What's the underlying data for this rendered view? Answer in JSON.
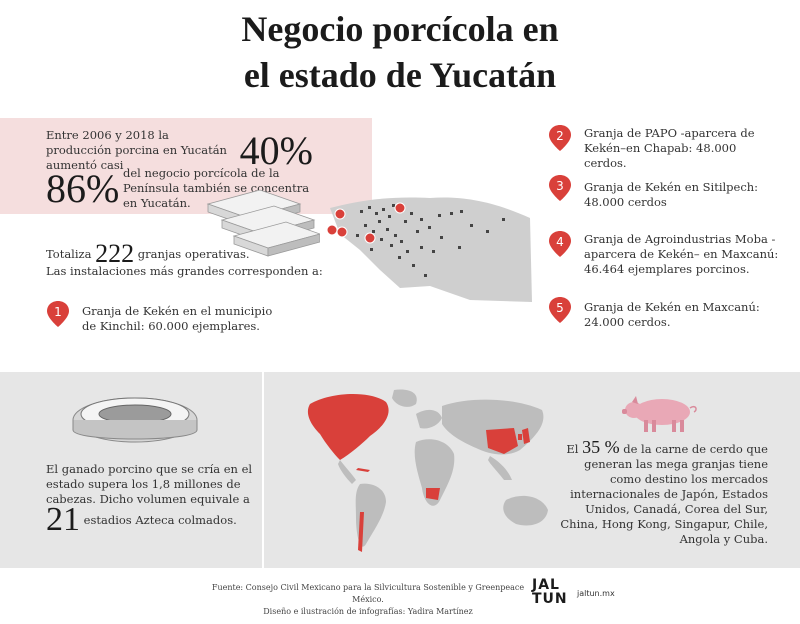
{
  "title": {
    "line1": "Negocio porcícola en",
    "line2": "el estado de Yucatán"
  },
  "stats": {
    "growth_text": "Entre 2006 y 2018 la producción porcina en Yucatán aumentó casi",
    "growth_value": "40%",
    "share_value": "86%",
    "share_text": "del negocio porcícola de la Península también se concentra en Yucatán.",
    "farms_prefix": "Totaliza",
    "farms_value": "222",
    "farms_suffix": "granjas operativas.",
    "farms_note": "Las instalaciones más grandes corresponden a:"
  },
  "farms": [
    {
      "num": "1",
      "text": "Granja de Kekén en el municipio de Kinchil: 60.000 ejemplares."
    },
    {
      "num": "2",
      "text": "Granja de PAPO -aparcera de Kekén–en Chapab: 48.000 cerdos."
    },
    {
      "num": "3",
      "text": "Granja de Kekén en Sitilpech: 48.000 cerdos"
    },
    {
      "num": "4",
      "text": "Granja de Agroindustrias Moba -aparcera de Kekén– en Maxcanú: 46.464 ejemplares porcinos."
    },
    {
      "num": "5",
      "text": "Granja de Kekén en Maxcanú: 24.000 cerdos."
    }
  ],
  "stadium": {
    "text": "El ganado porcino que se cría en el estado supera los 1,8 millones de cabezas. Dicho volumen equivale a",
    "value": "21",
    "suffix": "estadios Azteca colmados."
  },
  "export": {
    "prefix": "El",
    "value": "35 %",
    "text": "de la carne de cerdo que generan las mega granjas tiene como destino los mercados internacionales de Japón, Estados Unidos, Canadá, Corea del Sur, China, Hong Kong, Singapur, Chile, Angola y Cuba."
  },
  "footer": {
    "source": "Fuente: Consejo Civil Mexicano para la Silvicultura Sostenible y Greenpeace México.",
    "credit": "Diseño e ilustración de infografías: Yadira Martínez",
    "logo_top": "JAL",
    "logo_bottom": "TUN",
    "site": "jaltun.mx"
  },
  "colors": {
    "accent": "#d9403a",
    "pink_band": "#f5dede",
    "map_gray": "#cfcfcf",
    "bottom_band": "#e6e6e6",
    "pig": "#e9a8b6"
  }
}
